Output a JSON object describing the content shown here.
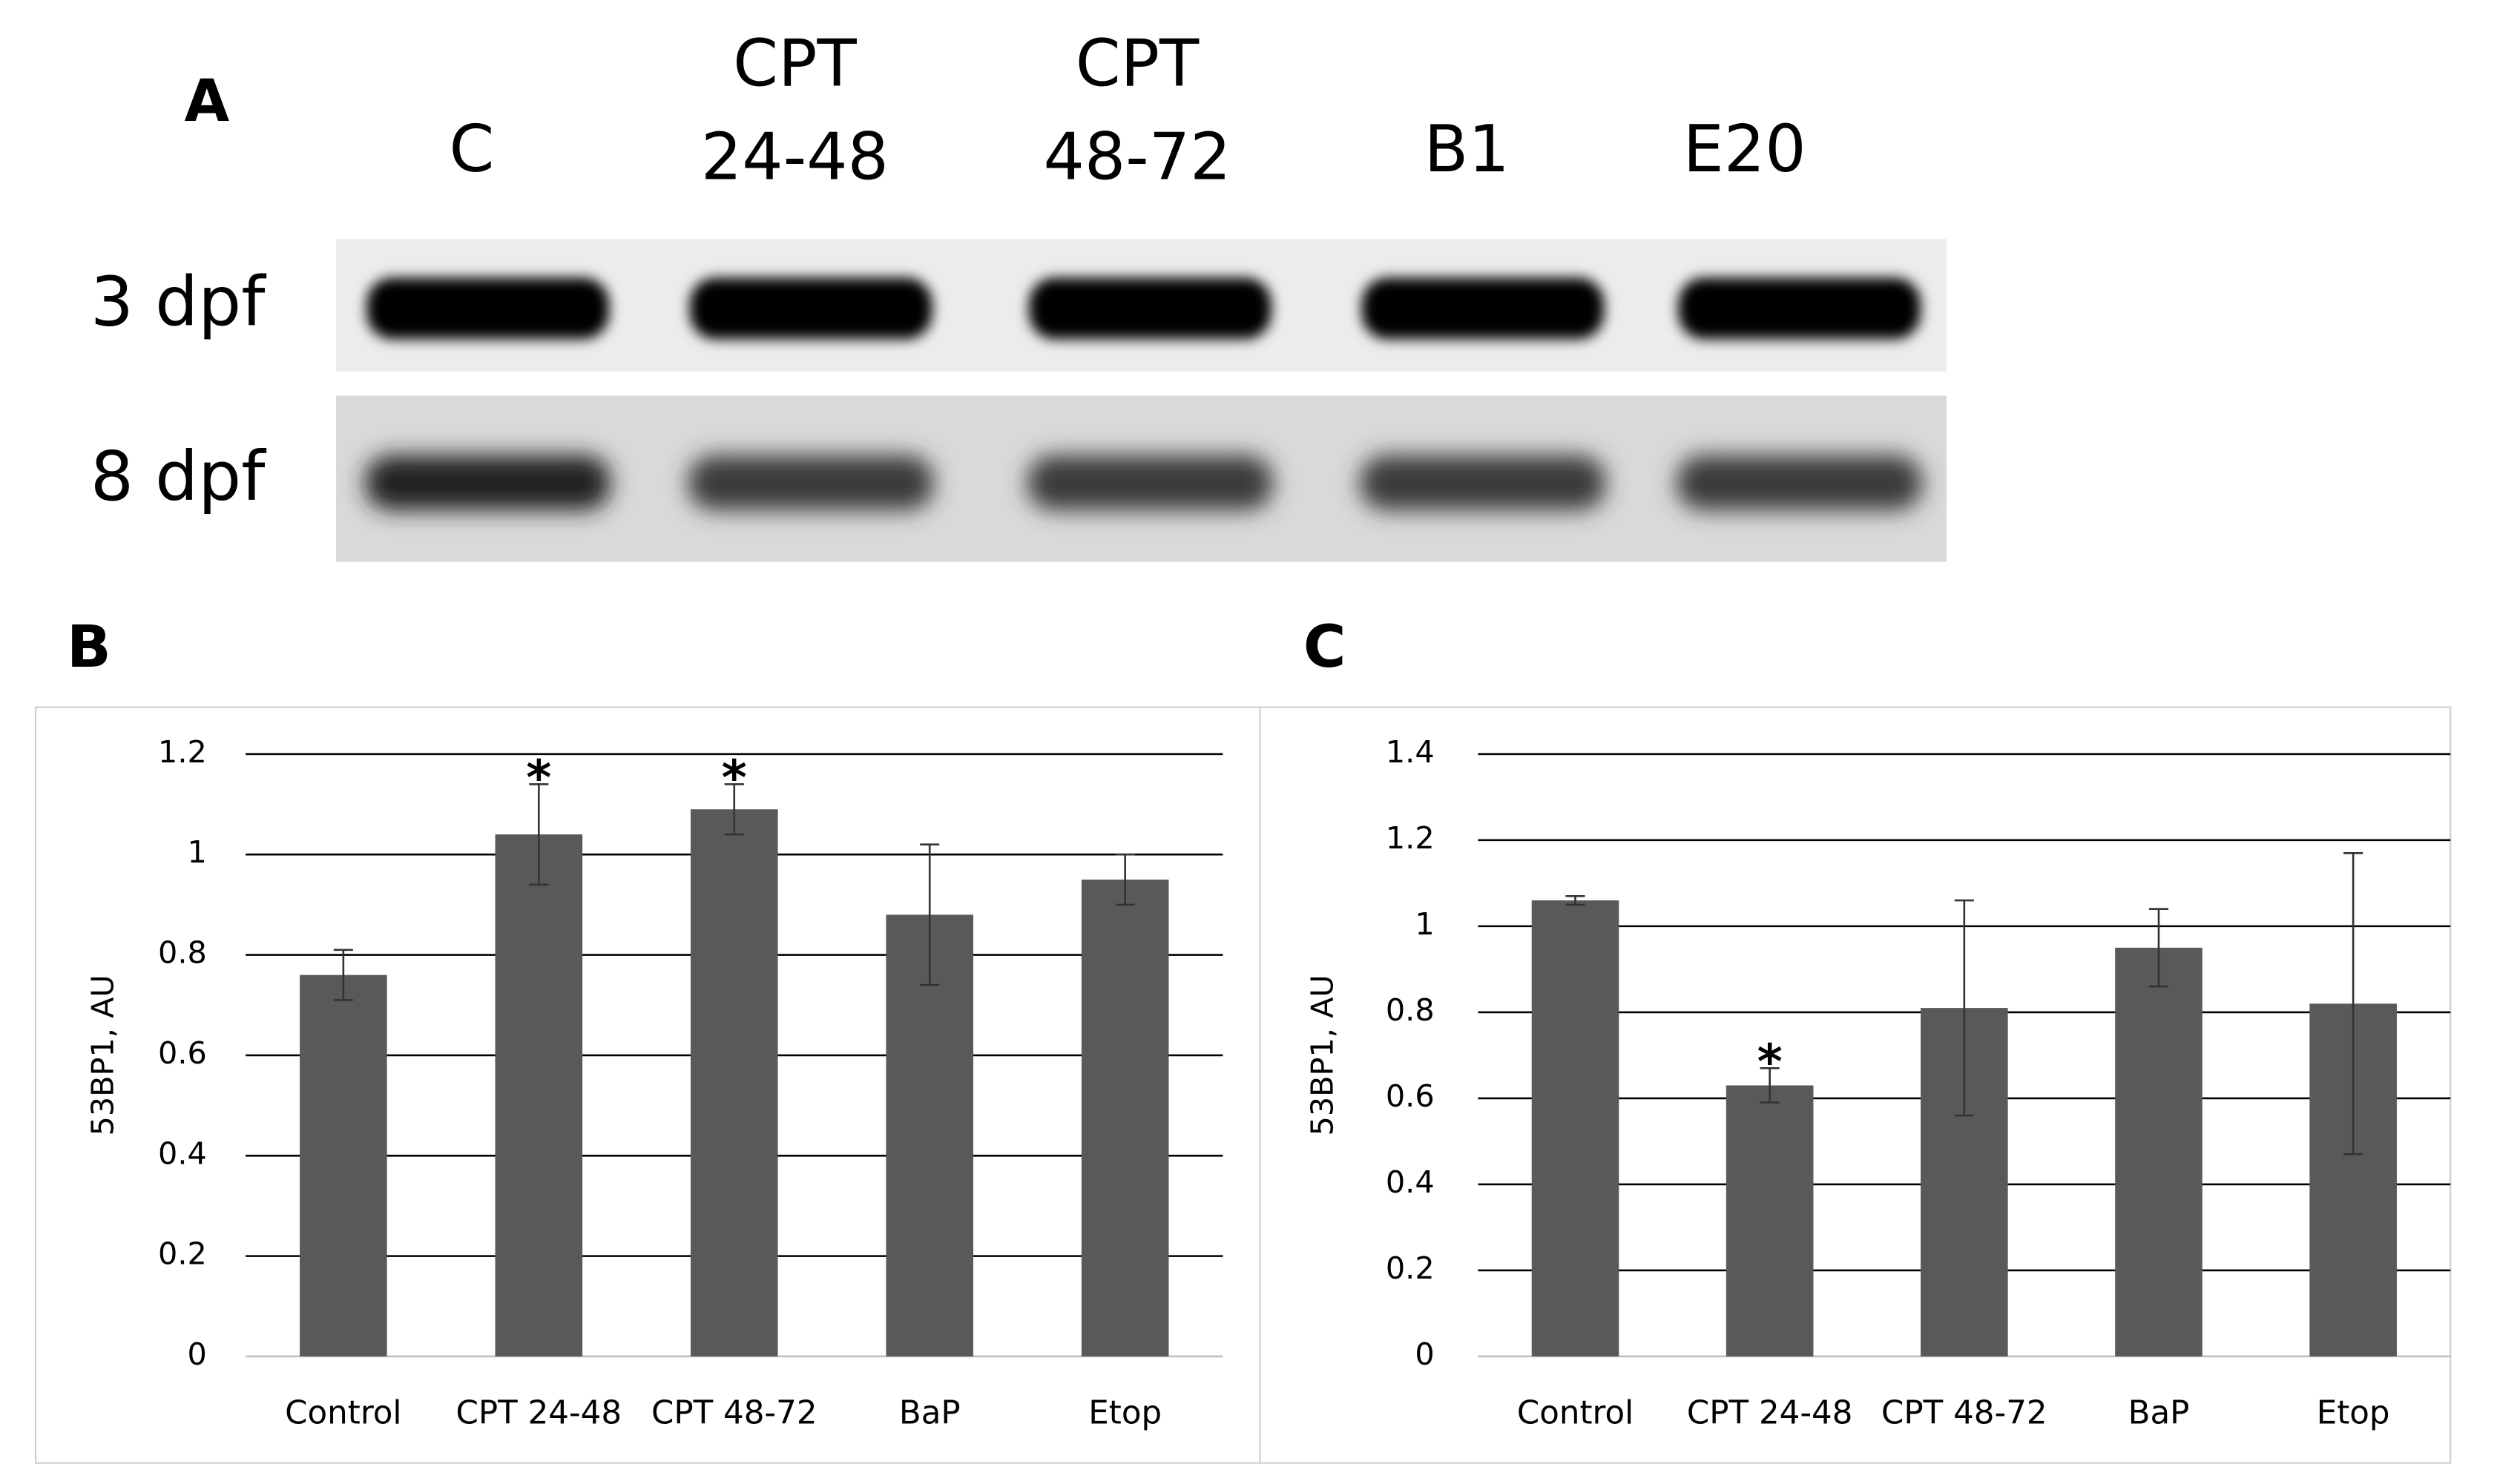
{
  "figure": {
    "panel_labels": [
      "A",
      "B",
      "C"
    ],
    "blot": {
      "lanes": [
        [
          "C"
        ],
        [
          "CPT",
          "24-48"
        ],
        [
          "CPT",
          "48-72"
        ],
        [
          "B1"
        ],
        [
          "E20"
        ]
      ],
      "rows": [
        "3 dpf",
        "8 dpf"
      ]
    }
  },
  "chart_data": [
    {
      "type": "bar",
      "ylabel": "53BP1, AU",
      "categories": [
        "Control",
        "CPT 24-48",
        "CPT 48-72",
        "BaP",
        "Etop"
      ],
      "series": [
        {
          "color": "#595959",
          "values": [
            0.76,
            1.04,
            1.09,
            0.88,
            0.95
          ],
          "errors": [
            0.05,
            0.1,
            0.05,
            0.14,
            0.05
          ]
        }
      ],
      "annotations": [
        null,
        "*",
        "*",
        null,
        null
      ],
      "ylim": [
        0,
        1.2
      ],
      "yticks": [
        0,
        0.2,
        0.4,
        0.6,
        0.8,
        1,
        1.2
      ],
      "grid": true
    },
    {
      "type": "bar",
      "ylabel": "53BP1, AU",
      "categories": [
        "Control",
        "CPT 24-48",
        "CPT 48-72",
        "BaP",
        "Etop"
      ],
      "series": [
        {
          "color": "#595959",
          "values": [
            1.06,
            0.63,
            0.81,
            0.95,
            0.82
          ],
          "errors": [
            0.01,
            0.04,
            0.25,
            0.09,
            0.35
          ]
        }
      ],
      "annotations": [
        null,
        "*",
        null,
        null,
        null
      ],
      "ylim": [
        0,
        1.4
      ],
      "yticks": [
        0,
        0.2,
        0.4,
        0.6,
        0.8,
        1,
        1.2,
        1.4
      ],
      "grid": true
    }
  ]
}
